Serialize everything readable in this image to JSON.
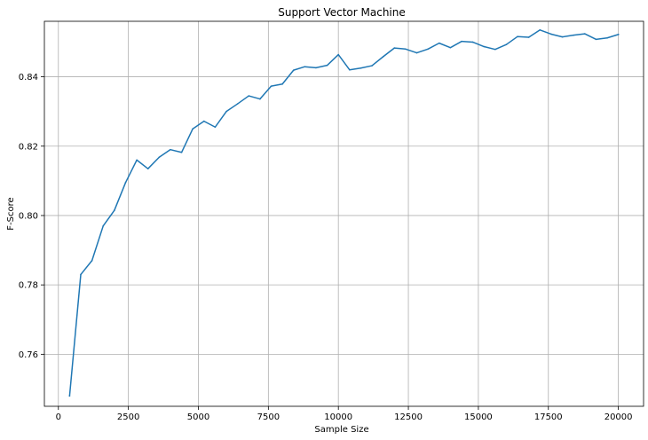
{
  "chart_data": {
    "type": "line",
    "title": "Support Vector Machine",
    "xlabel": "Sample Size",
    "ylabel": "F-Score",
    "xlim": [
      -500,
      20900
    ],
    "ylim": [
      0.745,
      0.856
    ],
    "xticks": [
      0,
      2500,
      5000,
      7500,
      10000,
      12500,
      15000,
      17500,
      20000
    ],
    "yticks": [
      0.76,
      0.78,
      0.8,
      0.82,
      0.84
    ],
    "ytick_labels": [
      "0.76",
      "0.78",
      "0.80",
      "0.82",
      "0.84"
    ],
    "grid": true,
    "series": [
      {
        "color": "#1f77b4",
        "x": [
          400,
          800,
          1200,
          1600,
          2000,
          2400,
          2800,
          3200,
          3600,
          4000,
          4400,
          4800,
          5200,
          5600,
          6000,
          6400,
          6800,
          7200,
          7600,
          8000,
          8400,
          8800,
          9200,
          9600,
          10000,
          10400,
          10800,
          11200,
          11600,
          12000,
          12400,
          12800,
          13200,
          13600,
          14000,
          14400,
          14800,
          15200,
          15600,
          16000,
          16400,
          16800,
          17200,
          17600,
          18000,
          18400,
          18800,
          19200,
          19600,
          20000
        ],
        "y": [
          0.748,
          0.783,
          0.787,
          0.797,
          0.8015,
          0.8095,
          0.816,
          0.8135,
          0.8168,
          0.819,
          0.8182,
          0.825,
          0.8272,
          0.8255,
          0.83,
          0.8322,
          0.8345,
          0.8336,
          0.8373,
          0.8379,
          0.8419,
          0.8429,
          0.8426,
          0.8433,
          0.8464,
          0.842,
          0.8425,
          0.8432,
          0.8458,
          0.8483,
          0.848,
          0.8469,
          0.848,
          0.8497,
          0.8484,
          0.8502,
          0.85,
          0.8487,
          0.8479,
          0.8493,
          0.8516,
          0.8514,
          0.8535,
          0.8523,
          0.8515,
          0.852,
          0.8524,
          0.8508,
          0.8512,
          0.8522
        ]
      }
    ]
  }
}
